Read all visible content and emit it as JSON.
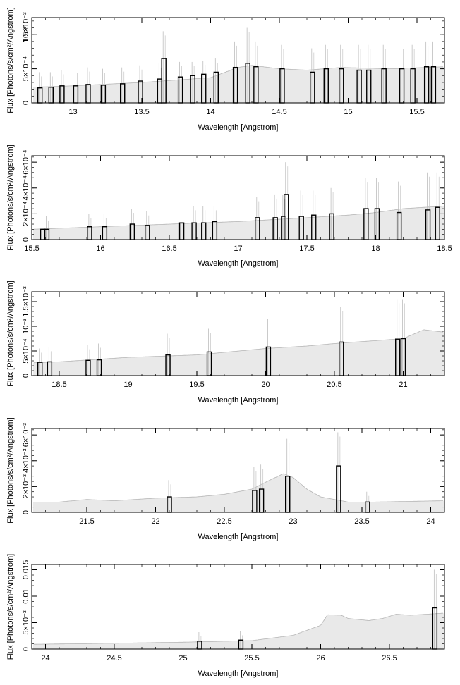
{
  "chart_data": [
    {
      "type": "bar",
      "xlabel": "Wavelength [Angstrom]",
      "ylabel": "Flux [Photons/s/cm²/Angstrom]",
      "xlim": [
        12.7,
        15.7
      ],
      "ylim": [
        0,
        0.00125
      ],
      "xticks": [
        13,
        13.5,
        14,
        14.5,
        15,
        15.5
      ],
      "xtick_labels": [
        "13",
        "13.5",
        "14",
        "14.5",
        "15",
        "15.5"
      ],
      "yticks": [
        0,
        0.0005,
        0.001
      ],
      "ytick_labels": [
        "0",
        "5×10⁻⁴",
        "10⁻³"
      ],
      "ytick_extra_label": "1.5×10⁻³",
      "continuum": [
        [
          12.7,
          0.00023
        ],
        [
          13.0,
          0.00025
        ],
        [
          13.5,
          0.0003
        ],
        [
          14.0,
          0.00037
        ],
        [
          14.2,
          0.00052
        ],
        [
          14.3,
          0.00055
        ],
        [
          14.5,
          0.0005
        ],
        [
          14.7,
          0.00048
        ],
        [
          14.95,
          0.00052
        ],
        [
          15.3,
          0.0005
        ],
        [
          15.7,
          0.00053
        ]
      ],
      "lines": [
        {
          "x": 12.76,
          "y": 0.00022,
          "err": 0.00045
        },
        {
          "x": 12.84,
          "y": 0.00023,
          "err": 0.00045
        },
        {
          "x": 12.92,
          "y": 0.00025,
          "err": 0.00048
        },
        {
          "x": 13.02,
          "y": 0.00025,
          "err": 0.0005
        },
        {
          "x": 13.11,
          "y": 0.00027,
          "err": 0.00052
        },
        {
          "x": 13.22,
          "y": 0.00026,
          "err": 0.0005
        },
        {
          "x": 13.36,
          "y": 0.00028,
          "err": 0.00052
        },
        {
          "x": 13.49,
          "y": 0.00032,
          "err": 0.00055
        },
        {
          "x": 13.63,
          "y": 0.00035,
          "err": 0.00058
        },
        {
          "x": 13.66,
          "y": 0.00065,
          "err": 0.00105
        },
        {
          "x": 13.78,
          "y": 0.00038,
          "err": 0.0006
        },
        {
          "x": 13.87,
          "y": 0.0004,
          "err": 0.0006
        },
        {
          "x": 13.95,
          "y": 0.00042,
          "err": 0.00062
        },
        {
          "x": 14.04,
          "y": 0.00045,
          "err": 0.00065
        },
        {
          "x": 14.18,
          "y": 0.00052,
          "err": 0.0009
        },
        {
          "x": 14.27,
          "y": 0.00058,
          "err": 0.0011
        },
        {
          "x": 14.33,
          "y": 0.00053,
          "err": 0.0009
        },
        {
          "x": 14.52,
          "y": 0.0005,
          "err": 0.00085
        },
        {
          "x": 14.74,
          "y": 0.00045,
          "err": 0.0008
        },
        {
          "x": 14.84,
          "y": 0.0005,
          "err": 0.00085
        },
        {
          "x": 14.95,
          "y": 0.0005,
          "err": 0.00085
        },
        {
          "x": 15.08,
          "y": 0.00048,
          "err": 0.00085
        },
        {
          "x": 15.15,
          "y": 0.00048,
          "err": 0.00085
        },
        {
          "x": 15.26,
          "y": 0.0005,
          "err": 0.00085
        },
        {
          "x": 15.39,
          "y": 0.0005,
          "err": 0.00085
        },
        {
          "x": 15.47,
          "y": 0.0005,
          "err": 0.00085
        },
        {
          "x": 15.57,
          "y": 0.00053,
          "err": 0.0009
        },
        {
          "x": 15.62,
          "y": 0.00053,
          "err": 0.0009
        }
      ]
    },
    {
      "type": "bar",
      "xlabel": "Wavelength [Angstrom]",
      "ylabel": "Flux [Photons/s/cm²/Angstrom]",
      "xlim": [
        15.5,
        18.5
      ],
      "ylim": [
        0,
        0.00065
      ],
      "xticks": [
        15.5,
        16,
        16.5,
        17,
        17.5,
        18,
        18.5
      ],
      "xtick_labels": [
        "15.5",
        "16",
        "16.5",
        "17",
        "17.5",
        "18",
        "18.5"
      ],
      "yticks": [
        0,
        0.0002,
        0.0004,
        0.0006
      ],
      "ytick_labels": [
        "0",
        "2×10⁻⁴",
        "4×10⁻⁴",
        "6×10⁻⁴"
      ],
      "continuum": [
        [
          15.5,
          8e-05
        ],
        [
          16.0,
          0.0001
        ],
        [
          16.5,
          0.00012
        ],
        [
          17.0,
          0.00014
        ],
        [
          17.5,
          0.00017
        ],
        [
          17.8,
          0.00019
        ],
        [
          18.0,
          0.00021
        ],
        [
          18.2,
          0.00024
        ],
        [
          18.5,
          0.00026
        ]
      ],
      "lines": [
        {
          "x": 15.58,
          "y": 8e-05,
          "err": 0.00018
        },
        {
          "x": 15.61,
          "y": 8e-05,
          "err": 0.00018
        },
        {
          "x": 15.92,
          "y": 0.0001,
          "err": 0.0002
        },
        {
          "x": 16.03,
          "y": 0.0001,
          "err": 0.0002
        },
        {
          "x": 16.23,
          "y": 0.00012,
          "err": 0.00024
        },
        {
          "x": 16.34,
          "y": 0.00011,
          "err": 0.00022
        },
        {
          "x": 16.59,
          "y": 0.00013,
          "err": 0.00025
        },
        {
          "x": 16.68,
          "y": 0.00013,
          "err": 0.00026
        },
        {
          "x": 16.75,
          "y": 0.00013,
          "err": 0.00026
        },
        {
          "x": 16.83,
          "y": 0.00014,
          "err": 0.00026
        },
        {
          "x": 17.14,
          "y": 0.00017,
          "err": 0.00033
        },
        {
          "x": 17.27,
          "y": 0.00017,
          "err": 0.00035
        },
        {
          "x": 17.33,
          "y": 0.00018,
          "err": 0.00035
        },
        {
          "x": 17.35,
          "y": 0.00035,
          "err": 0.0006
        },
        {
          "x": 17.46,
          "y": 0.00018,
          "err": 0.00038
        },
        {
          "x": 17.55,
          "y": 0.00019,
          "err": 0.00038
        },
        {
          "x": 17.68,
          "y": 0.0002,
          "err": 0.0004
        },
        {
          "x": 17.93,
          "y": 0.00024,
          "err": 0.00048
        },
        {
          "x": 18.01,
          "y": 0.00024,
          "err": 0.00048
        },
        {
          "x": 18.17,
          "y": 0.00021,
          "err": 0.00045
        },
        {
          "x": 18.38,
          "y": 0.00023,
          "err": 0.00052
        },
        {
          "x": 18.45,
          "y": 0.00025,
          "err": 0.00052
        }
      ]
    },
    {
      "type": "bar",
      "xlabel": "Wavelength [Angstrom]",
      "ylabel": "Flux [Photons/s/cm²/Angstrom]",
      "xlim": [
        18.3,
        21.3
      ],
      "ylim": [
        0,
        0.0017
      ],
      "xticks": [
        18.5,
        19,
        19.5,
        20,
        20.5,
        21
      ],
      "xtick_labels": [
        "18.5",
        "19",
        "19.5",
        "20",
        "20.5",
        "21"
      ],
      "yticks": [
        0,
        0.0005,
        0.001,
        0.0015
      ],
      "ytick_labels": [
        "0",
        "5×10⁻⁴",
        "10⁻³",
        "1.5×10⁻³"
      ],
      "continuum": [
        [
          18.3,
          0.00026
        ],
        [
          18.5,
          0.00028
        ],
        [
          19.0,
          0.00037
        ],
        [
          19.5,
          0.00042
        ],
        [
          20.0,
          0.00055
        ],
        [
          20.3,
          0.0006
        ],
        [
          20.5,
          0.00065
        ],
        [
          20.75,
          0.0007
        ],
        [
          21.0,
          0.00075
        ],
        [
          21.15,
          0.00093
        ],
        [
          21.3,
          0.00088
        ]
      ],
      "lines": [
        {
          "x": 18.36,
          "y": 0.00027,
          "err": 0.00055
        },
        {
          "x": 18.43,
          "y": 0.00028,
          "err": 0.00058
        },
        {
          "x": 18.71,
          "y": 0.00031,
          "err": 0.00062
        },
        {
          "x": 18.79,
          "y": 0.00032,
          "err": 0.00065
        },
        {
          "x": 19.29,
          "y": 0.00042,
          "err": 0.00085
        },
        {
          "x": 19.59,
          "y": 0.00048,
          "err": 0.00095
        },
        {
          "x": 20.02,
          "y": 0.00058,
          "err": 0.00115
        },
        {
          "x": 20.55,
          "y": 0.00068,
          "err": 0.0014
        },
        {
          "x": 20.96,
          "y": 0.00074,
          "err": 0.00155
        },
        {
          "x": 21.0,
          "y": 0.00075,
          "err": 0.00155
        }
      ]
    },
    {
      "type": "bar",
      "xlabel": "Wavelength [Angstrom]",
      "ylabel": "Flux [Photons/s/cm²/Angstrom]",
      "xlim": [
        21.1,
        24.1
      ],
      "ylim": [
        0,
        0.0065
      ],
      "xticks": [
        21.5,
        22,
        22.5,
        23,
        23.5,
        24
      ],
      "xtick_labels": [
        "21.5",
        "22",
        "22.5",
        "23",
        "23.5",
        "24"
      ],
      "yticks": [
        0,
        0.002,
        0.004,
        0.006
      ],
      "ytick_labels": [
        "0",
        "2×10⁻³",
        "4×10⁻³",
        "6×10⁻³"
      ],
      "continuum": [
        [
          21.1,
          0.0008
        ],
        [
          21.3,
          0.0008
        ],
        [
          21.5,
          0.001
        ],
        [
          21.7,
          0.0009
        ],
        [
          22.0,
          0.0011
        ],
        [
          22.3,
          0.0012
        ],
        [
          22.5,
          0.0014
        ],
        [
          22.7,
          0.0018
        ],
        [
          22.85,
          0.0026
        ],
        [
          22.93,
          0.003
        ],
        [
          23.0,
          0.0027
        ],
        [
          23.1,
          0.0018
        ],
        [
          23.2,
          0.0012
        ],
        [
          23.3,
          0.001
        ],
        [
          23.4,
          0.0008
        ],
        [
          23.6,
          0.0008
        ],
        [
          24.1,
          0.0009
        ]
      ],
      "lines": [
        {
          "x": 22.1,
          "y": 0.0012,
          "err": 0.0025
        },
        {
          "x": 22.72,
          "y": 0.0017,
          "err": 0.0035
        },
        {
          "x": 22.77,
          "y": 0.0018,
          "err": 0.0037
        },
        {
          "x": 22.96,
          "y": 0.0028,
          "err": 0.0057
        },
        {
          "x": 23.33,
          "y": 0.0036,
          "err": 0.0062
        },
        {
          "x": 23.54,
          "y": 0.0008,
          "err": 0.0016
        }
      ]
    },
    {
      "type": "bar",
      "xlabel": "Wavelength [Angstrom]",
      "ylabel": "Flux [Photons/s/cm²/Angstrom]",
      "xlim": [
        23.9,
        26.9
      ],
      "ylim": [
        0,
        0.016
      ],
      "xticks": [
        24,
        24.5,
        25,
        25.5,
        26,
        26.5
      ],
      "xtick_labels": [
        "24",
        "24.5",
        "25",
        "25.5",
        "26",
        "26.5"
      ],
      "yticks": [
        0,
        0.005,
        0.01,
        0.015
      ],
      "ytick_labels": [
        "0",
        "5×10⁻³",
        "0.01",
        "0.015"
      ],
      "continuum": [
        [
          23.9,
          0.0009
        ],
        [
          24.5,
          0.0011
        ],
        [
          25.0,
          0.0013
        ],
        [
          25.5,
          0.0016
        ],
        [
          25.8,
          0.0026
        ],
        [
          26.0,
          0.0045
        ],
        [
          26.05,
          0.0065
        ],
        [
          26.15,
          0.0064
        ],
        [
          26.2,
          0.0058
        ],
        [
          26.35,
          0.0054
        ],
        [
          26.45,
          0.0058
        ],
        [
          26.55,
          0.0066
        ],
        [
          26.65,
          0.0064
        ],
        [
          26.9,
          0.0068
        ]
      ],
      "lines": [
        {
          "x": 25.12,
          "y": 0.0015,
          "err": 0.0032
        },
        {
          "x": 25.42,
          "y": 0.0017,
          "err": 0.0034
        },
        {
          "x": 26.83,
          "y": 0.0078,
          "err": 0.015
        }
      ]
    }
  ]
}
